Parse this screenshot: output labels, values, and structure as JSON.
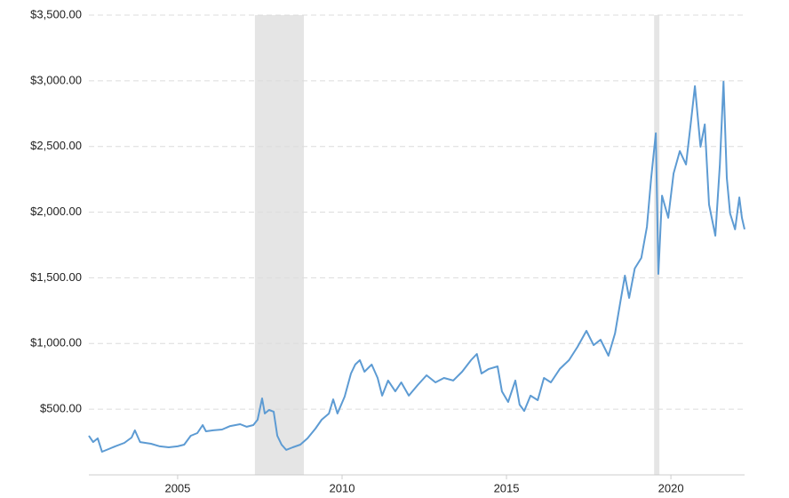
{
  "chart_data": {
    "type": "line",
    "color": "#5d9bd3",
    "shade_color": "#e5e5e5",
    "xlim": [
      2002.3,
      2022.24
    ],
    "ylim": [
      0,
      3500
    ],
    "xticks": [
      2005,
      2010,
      2015,
      2020
    ],
    "yticks": [
      {
        "value": 500,
        "label": "$500.00"
      },
      {
        "value": 1000,
        "label": "$1,000.00"
      },
      {
        "value": 1500,
        "label": "$1,500.00"
      },
      {
        "value": 2000,
        "label": "$2,000.00"
      },
      {
        "value": 2500,
        "label": "$2,500.00"
      },
      {
        "value": 3000,
        "label": "$3,000.00"
      },
      {
        "value": 3500,
        "label": "$3,500.00"
      }
    ],
    "grid": true,
    "shaded_ranges": [
      [
        2007.35,
        2008.84
      ],
      [
        2019.49,
        2019.65
      ]
    ],
    "x": [
      2002.3,
      2002.43,
      2002.57,
      2002.7,
      2002.9,
      2003.1,
      2003.38,
      2003.6,
      2003.7,
      2003.86,
      2004.19,
      2004.46,
      2004.73,
      2005.0,
      2005.2,
      2005.4,
      2005.6,
      2005.76,
      2005.86,
      2006.08,
      2006.35,
      2006.6,
      2006.9,
      2007.1,
      2007.3,
      2007.43,
      2007.57,
      2007.65,
      2007.78,
      2007.92,
      2008.03,
      2008.16,
      2008.3,
      2008.5,
      2008.73,
      2008.95,
      2009.19,
      2009.38,
      2009.6,
      2009.73,
      2009.86,
      2010.08,
      2010.27,
      2010.4,
      2010.54,
      2010.68,
      2010.9,
      2011.08,
      2011.22,
      2011.4,
      2011.62,
      2011.8,
      2012.03,
      2012.3,
      2012.57,
      2012.84,
      2013.1,
      2013.38,
      2013.65,
      2013.92,
      2014.1,
      2014.24,
      2014.46,
      2014.73,
      2014.86,
      2015.05,
      2015.27,
      2015.4,
      2015.54,
      2015.73,
      2015.95,
      2016.14,
      2016.35,
      2016.62,
      2016.9,
      2017.16,
      2017.43,
      2017.65,
      2017.86,
      2018.1,
      2018.3,
      2018.46,
      2018.6,
      2018.73,
      2018.9,
      2019.1,
      2019.27,
      2019.4,
      2019.54,
      2019.62,
      2019.73,
      2019.92,
      2020.08,
      2020.27,
      2020.46,
      2020.6,
      2020.73,
      2020.9,
      2021.03,
      2021.16,
      2021.35,
      2021.49,
      2021.6,
      2021.7,
      2021.8,
      2021.95,
      2022.08,
      2022.16,
      2022.24
    ],
    "values": [
      298,
      250,
      278,
      176,
      196,
      217,
      244,
      284,
      339,
      250,
      237,
      217,
      210,
      217,
      230,
      298,
      318,
      379,
      332,
      339,
      345,
      372,
      386,
      366,
      379,
      420,
      582,
      467,
      494,
      481,
      298,
      230,
      190,
      210,
      230,
      278,
      352,
      420,
      467,
      575,
      467,
      596,
      772,
      840,
      873,
      785,
      840,
      738,
      603,
      718,
      636,
      704,
      603,
      684,
      758,
      704,
      738,
      718,
      785,
      873,
      921,
      772,
      806,
      826,
      636,
      555,
      718,
      535,
      487,
      603,
      569,
      738,
      704,
      806,
      873,
      975,
      1097,
      988,
      1029,
      907,
      1077,
      1313,
      1517,
      1347,
      1571,
      1652,
      1889,
      2261,
      2600,
      1530,
      2126,
      1957,
      2295,
      2465,
      2363,
      2668,
      2959,
      2498,
      2668,
      2058,
      1821,
      2363,
      2993,
      2261,
      1990,
      1869,
      2112,
      1957,
      1869
    ]
  }
}
